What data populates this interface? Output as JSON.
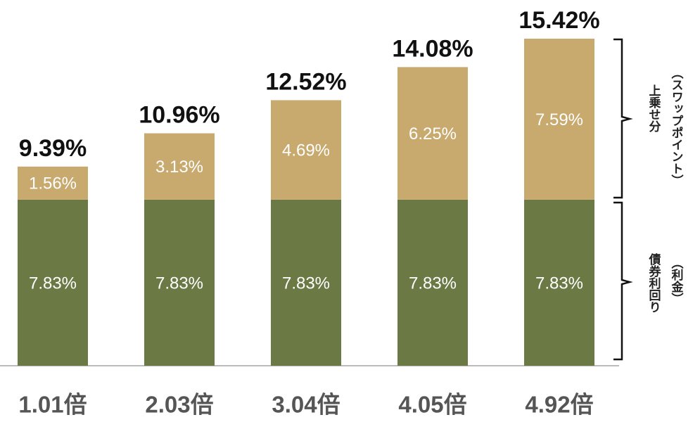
{
  "chart_data": {
    "type": "bar",
    "stacked": true,
    "categories": [
      "1.01倍",
      "2.03倍",
      "3.04倍",
      "4.05倍",
      "4.92倍"
    ],
    "series": [
      {
        "color": "#6b7a45",
        "values": [
          7.83,
          7.83,
          7.83,
          7.83,
          7.83
        ],
        "value_labels": [
          "7.83%",
          "7.83%",
          "7.83%",
          "7.83%",
          "7.83%"
        ]
      },
      {
        "color": "#c8a96e",
        "values": [
          1.56,
          3.13,
          4.69,
          6.25,
          7.59
        ],
        "value_labels": [
          "1.56%",
          "3.13%",
          "4.69%",
          "6.25%",
          "7.59%"
        ]
      }
    ],
    "totals": {
      "values": [
        9.39,
        10.96,
        12.52,
        14.08,
        15.42
      ],
      "value_labels": [
        "9.39%",
        "10.96%",
        "12.52%",
        "14.08%",
        "15.42%"
      ]
    },
    "annotations": [
      {
        "text": "上乗せ分",
        "subtext": "（スワップポイント）"
      },
      {
        "text": "債券利回り",
        "subtext": "（利金）"
      }
    ]
  }
}
